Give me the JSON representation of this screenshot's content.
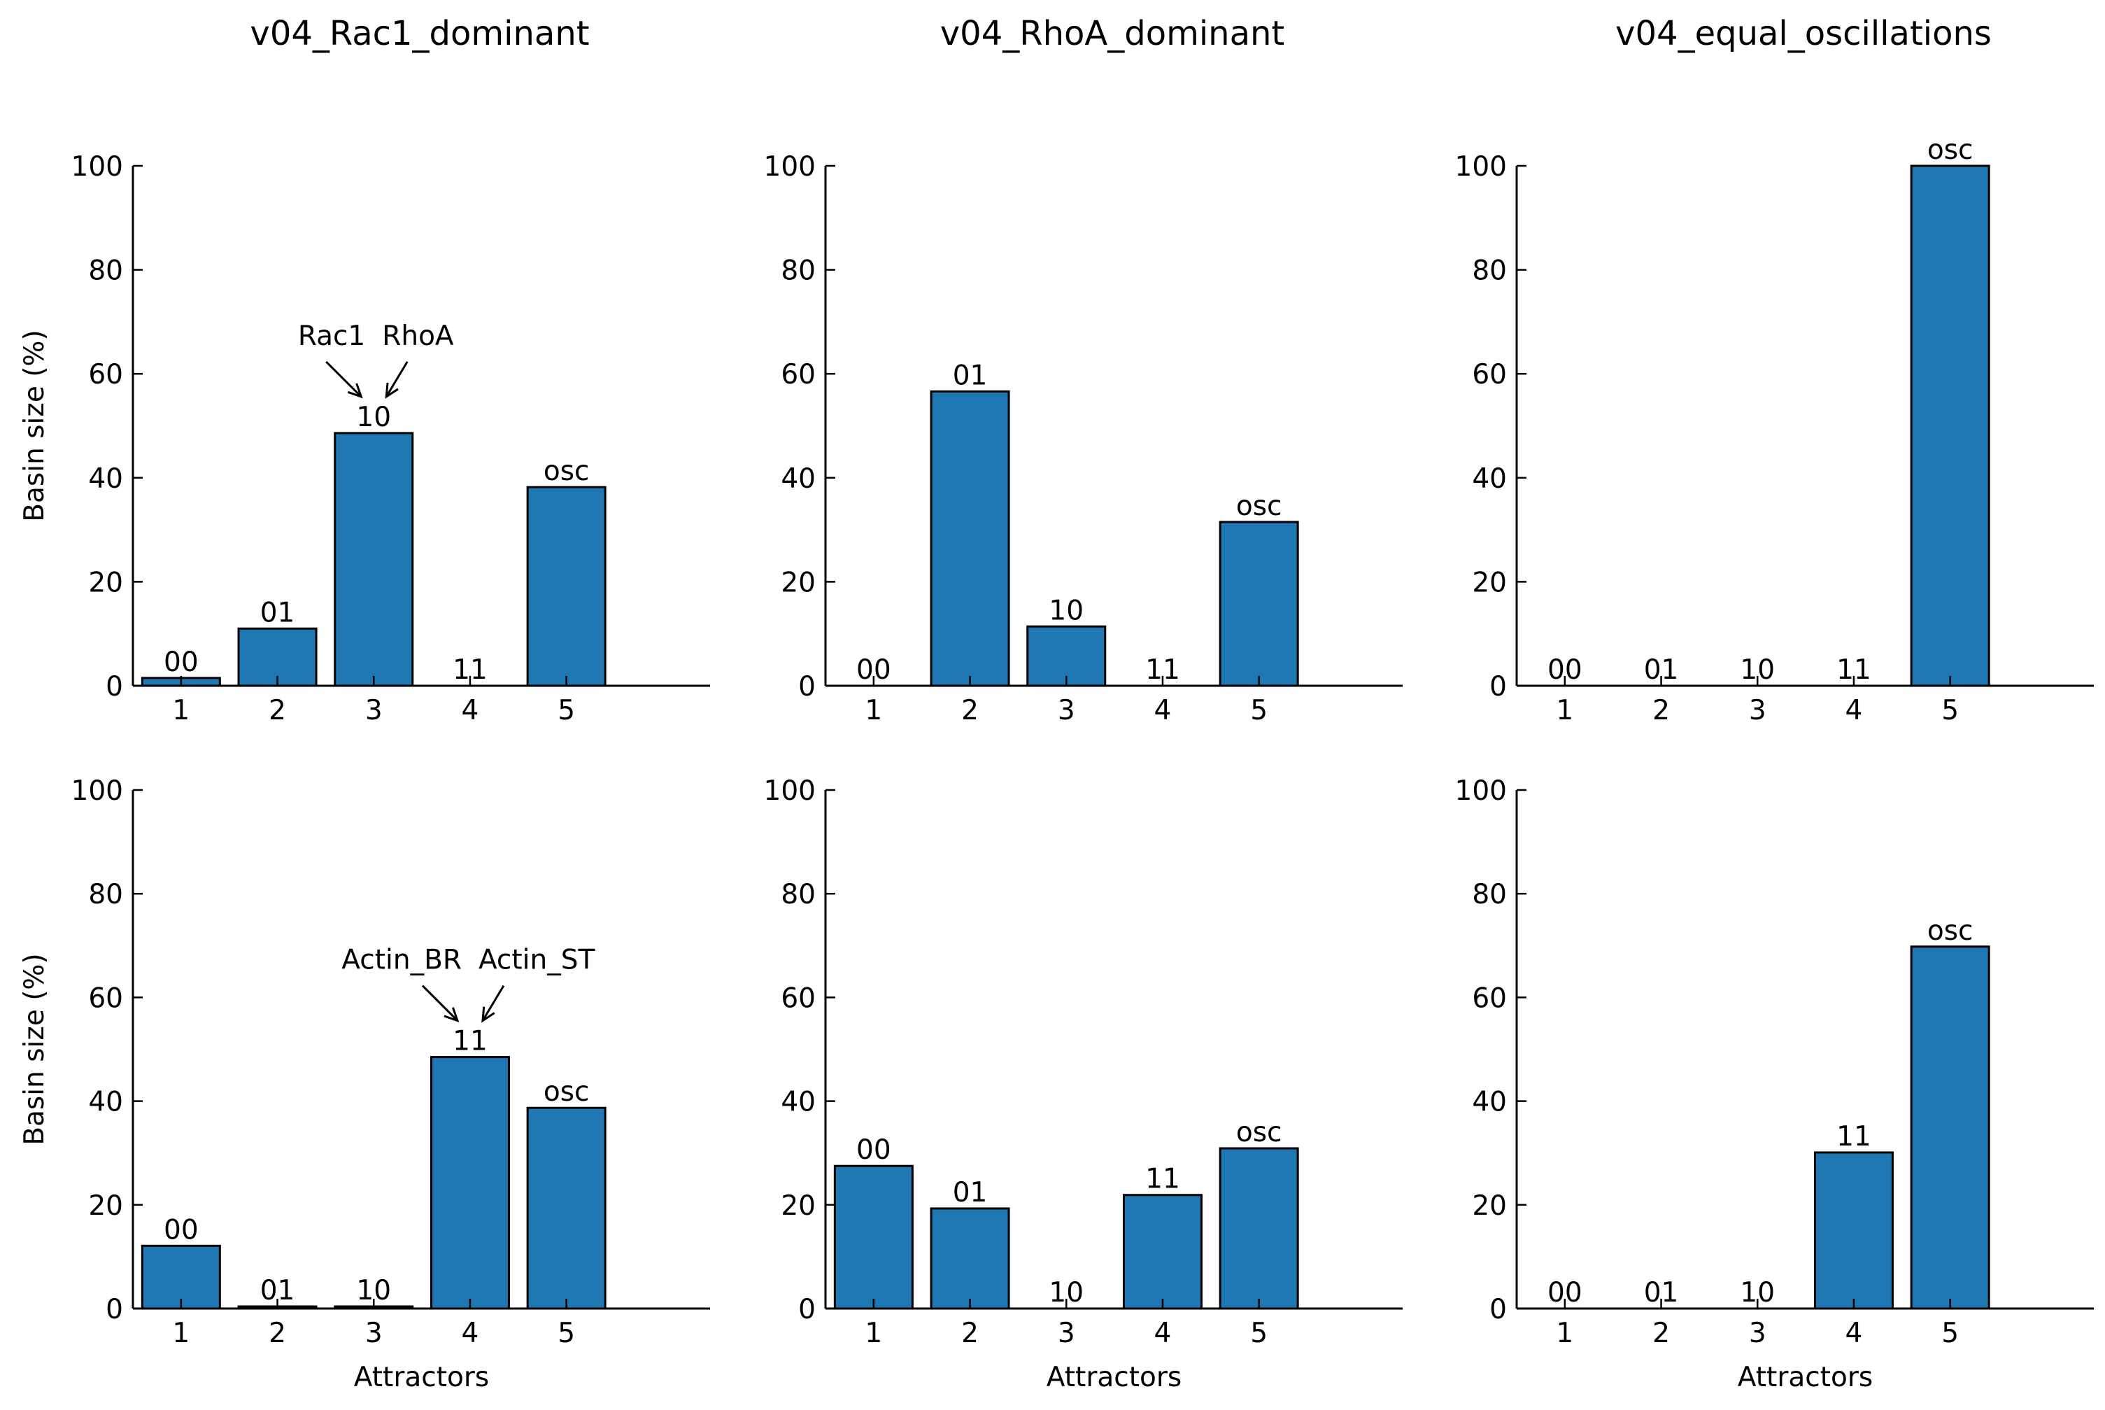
{
  "figure": {
    "column_titles": [
      "v04_Rac1_dominant",
      "v04_RhoA_dominant",
      "v04_equal_oscillations"
    ]
  },
  "colors": {
    "bar_fill": "#1f77b4",
    "bar_edge": "#000000",
    "axis": "#000000"
  },
  "chart_data": [
    {
      "type": "bar",
      "title": "v04_Rac1_dominant",
      "ylabel": "Basin size (%)",
      "xlabel": "",
      "categories": [
        "1",
        "2",
        "3",
        "4",
        "5"
      ],
      "values": [
        1.5,
        11,
        48.6,
        0,
        38.2
      ],
      "bar_labels": [
        "00",
        "01",
        "10",
        "11",
        "osc"
      ],
      "ylim": [
        0,
        100
      ],
      "yticks": [
        0,
        20,
        40,
        60,
        80,
        100
      ],
      "annotations": [
        {
          "texts": [
            "Rac1",
            "RhoA"
          ],
          "target_category": "3"
        }
      ]
    },
    {
      "type": "bar",
      "title": "",
      "ylabel": "",
      "xlabel": "",
      "categories": [
        "1",
        "2",
        "3",
        "4",
        "5"
      ],
      "values": [
        0,
        56.6,
        11.4,
        0,
        31.5
      ],
      "bar_labels": [
        "00",
        "01",
        "10",
        "11",
        "osc"
      ],
      "ylim": [
        0,
        100
      ],
      "yticks": [
        0,
        20,
        40,
        60,
        80,
        100
      ],
      "annotations": []
    },
    {
      "type": "bar",
      "title": "",
      "ylabel": "",
      "xlabel": "",
      "categories": [
        "1",
        "2",
        "3",
        "4",
        "5"
      ],
      "values": [
        0,
        0,
        0,
        0,
        100
      ],
      "bar_labels": [
        "00",
        "01",
        "10",
        "11",
        "osc"
      ],
      "ylim": [
        0,
        100
      ],
      "yticks": [
        0,
        20,
        40,
        60,
        80,
        100
      ],
      "annotations": []
    },
    {
      "type": "bar",
      "title": "",
      "ylabel": "Basin size (%)",
      "xlabel": "Attractors",
      "categories": [
        "1",
        "2",
        "3",
        "4",
        "5"
      ],
      "values": [
        12.1,
        0.4,
        0.4,
        48.5,
        38.7
      ],
      "bar_labels": [
        "00",
        "01",
        "10",
        "11",
        "osc"
      ],
      "ylim": [
        0,
        100
      ],
      "yticks": [
        0,
        20,
        40,
        60,
        80,
        100
      ],
      "annotations": [
        {
          "texts": [
            "Actin_BR",
            "Actin_ST"
          ],
          "target_category": "4"
        }
      ]
    },
    {
      "type": "bar",
      "title": "",
      "ylabel": "",
      "xlabel": "Attractors",
      "categories": [
        "1",
        "2",
        "3",
        "4",
        "5"
      ],
      "values": [
        27.5,
        19.3,
        0,
        21.9,
        30.9
      ],
      "bar_labels": [
        "00",
        "01",
        "10",
        "11",
        "osc"
      ],
      "ylim": [
        0,
        100
      ],
      "yticks": [
        0,
        20,
        40,
        60,
        80,
        100
      ],
      "annotations": []
    },
    {
      "type": "bar",
      "title": "",
      "ylabel": "",
      "xlabel": "Attractors",
      "categories": [
        "1",
        "2",
        "3",
        "4",
        "5"
      ],
      "values": [
        0,
        0,
        0,
        30.1,
        69.8
      ],
      "bar_labels": [
        "00",
        "01",
        "10",
        "11",
        "osc"
      ],
      "ylim": [
        0,
        100
      ],
      "yticks": [
        0,
        20,
        40,
        60,
        80,
        100
      ],
      "annotations": []
    }
  ]
}
